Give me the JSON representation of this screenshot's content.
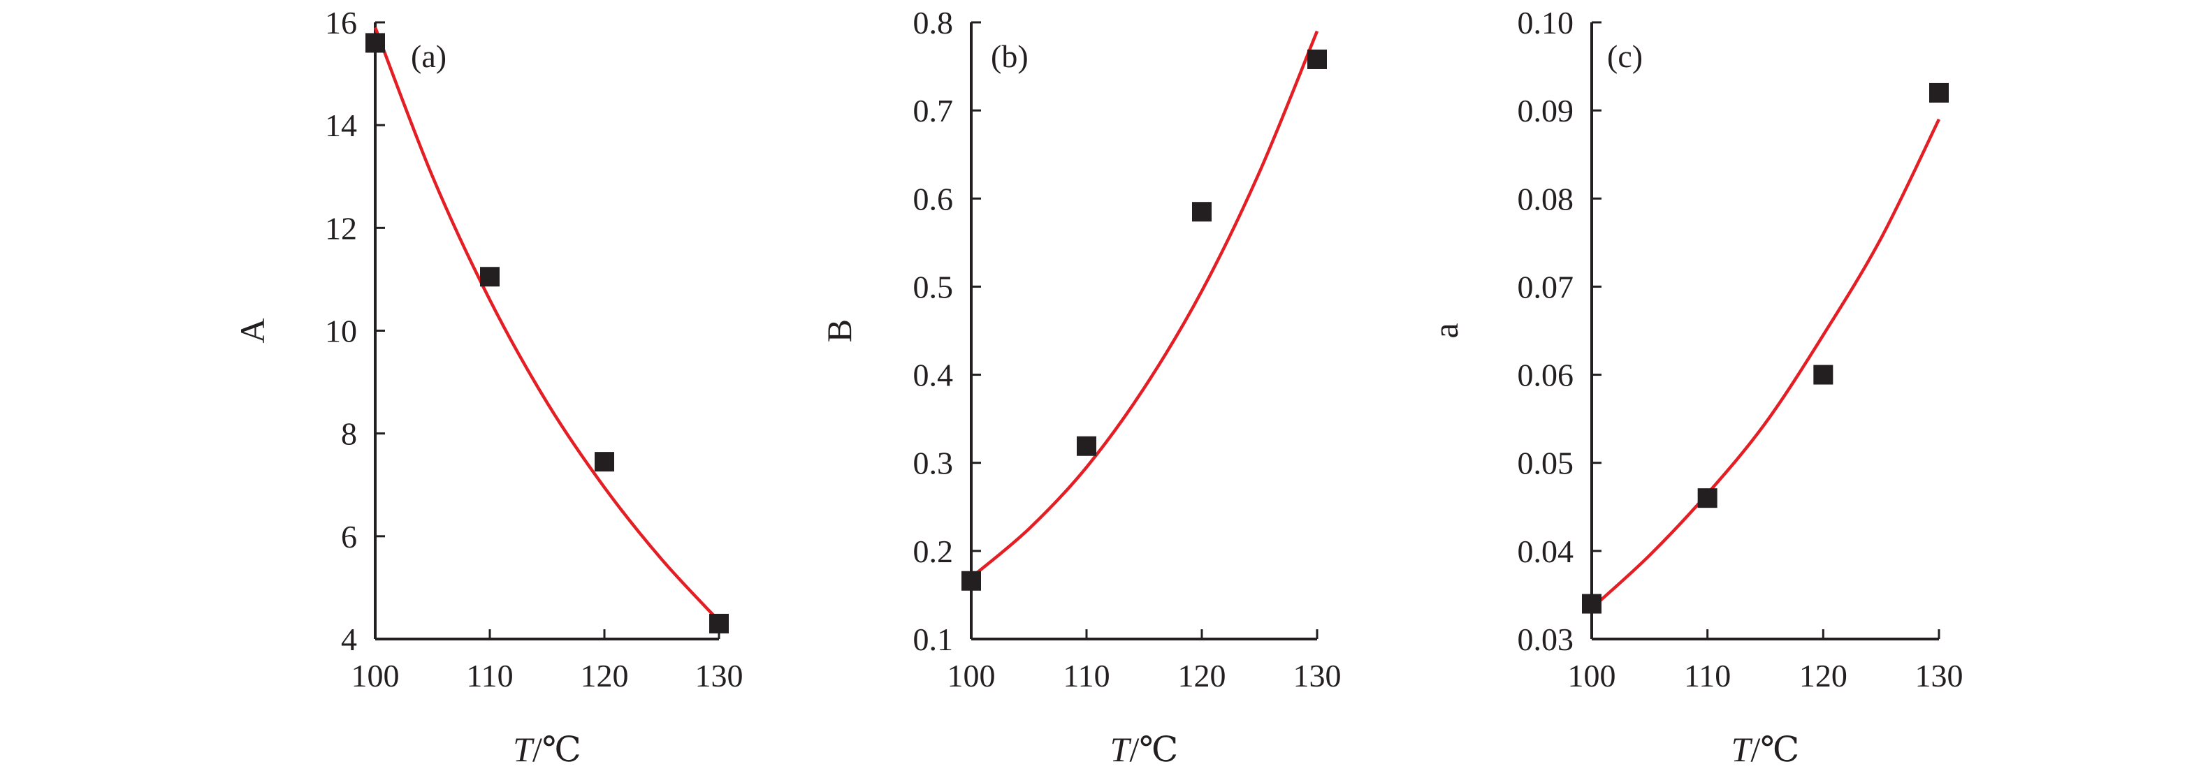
{
  "chart_data": [
    {
      "type": "scatter",
      "panel_label": "(a)",
      "ylabel": "A",
      "xlabel": {
        "var": "T",
        "unit": "/℃"
      },
      "xlim": [
        100,
        130
      ],
      "ylim": [
        4,
        16
      ],
      "xticks": [
        100,
        110,
        120,
        130
      ],
      "yticks": [
        4,
        6,
        8,
        10,
        12,
        14,
        16
      ],
      "tick_decimals": 0,
      "grid": false,
      "series": [
        {
          "kind": "points",
          "marker": "square",
          "color": "#231f20",
          "x": [
            100,
            110,
            120,
            130
          ],
          "y": [
            15.6,
            11.05,
            7.45,
            4.3
          ]
        },
        {
          "kind": "fit-line",
          "color": "#e31e24",
          "x": [
            100,
            105,
            110,
            115,
            120,
            125,
            130
          ],
          "y": [
            15.9,
            13.0,
            10.6,
            8.6,
            6.95,
            5.55,
            4.35
          ]
        }
      ]
    },
    {
      "type": "scatter",
      "panel_label": "(b)",
      "ylabel": "B",
      "xlabel": {
        "var": "T",
        "unit": "/℃"
      },
      "xlim": [
        100,
        130
      ],
      "ylim": [
        0.1,
        0.8
      ],
      "xticks": [
        100,
        110,
        120,
        130
      ],
      "yticks": [
        0.1,
        0.2,
        0.3,
        0.4,
        0.5,
        0.6,
        0.7,
        0.8
      ],
      "tick_decimals": 1,
      "grid": false,
      "series": [
        {
          "kind": "points",
          "marker": "square",
          "color": "#231f20",
          "x": [
            100,
            110,
            120,
            130
          ],
          "y": [
            0.166,
            0.319,
            0.585,
            0.758
          ]
        },
        {
          "kind": "fit-line",
          "color": "#e31e24",
          "x": [
            100,
            105,
            110,
            115,
            120,
            125,
            130
          ],
          "y": [
            0.17,
            0.225,
            0.295,
            0.385,
            0.495,
            0.63,
            0.79
          ]
        }
      ]
    },
    {
      "type": "scatter",
      "panel_label": "(c)",
      "ylabel": "a",
      "xlabel": {
        "var": "T",
        "unit": "/℃"
      },
      "xlim": [
        100,
        130
      ],
      "ylim": [
        0.03,
        0.1
      ],
      "xticks": [
        100,
        110,
        120,
        130
      ],
      "yticks": [
        0.03,
        0.04,
        0.05,
        0.06,
        0.07,
        0.08,
        0.09,
        0.1
      ],
      "tick_decimals": 2,
      "grid": false,
      "series": [
        {
          "kind": "points",
          "marker": "square",
          "color": "#231f20",
          "x": [
            100,
            110,
            120,
            130
          ],
          "y": [
            0.034,
            0.046,
            0.06,
            0.092
          ]
        },
        {
          "kind": "fit-line",
          "color": "#e31e24",
          "x": [
            100,
            105,
            110,
            115,
            120,
            125,
            130
          ],
          "y": [
            0.0335,
            0.0395,
            0.0465,
            0.0545,
            0.0645,
            0.0755,
            0.089
          ]
        }
      ]
    }
  ]
}
